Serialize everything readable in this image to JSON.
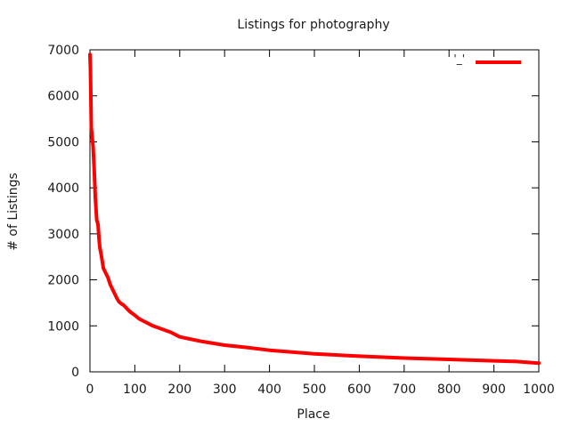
{
  "chart_data": {
    "type": "line",
    "title": "Listings for photography",
    "xlabel": "Place",
    "ylabel": "# of Listings",
    "xlim": [
      0,
      1000
    ],
    "ylim": [
      0,
      7000
    ],
    "xticks": [
      0,
      100,
      200,
      300,
      400,
      500,
      600,
      700,
      800,
      900,
      1000
    ],
    "yticks": [
      0,
      1000,
      2000,
      3000,
      4000,
      5000,
      6000,
      7000
    ],
    "grid": false,
    "legend": {
      "position": "top-right",
      "label": "'_'"
    },
    "series": [
      {
        "color": "#ff0000",
        "x": [
          0,
          1,
          2,
          3,
          5,
          7,
          10,
          12,
          15,
          18,
          20,
          22,
          25,
          30,
          35,
          40,
          45,
          50,
          55,
          60,
          65,
          70,
          75,
          80,
          85,
          90,
          100,
          110,
          120,
          140,
          160,
          180,
          200,
          250,
          300,
          350,
          400,
          450,
          500,
          600,
          700,
          800,
          900,
          950,
          1000
        ],
        "y": [
          6900,
          6600,
          6000,
          5300,
          5100,
          4900,
          4300,
          3800,
          3300,
          3200,
          2900,
          2700,
          2550,
          2250,
          2150,
          2050,
          1900,
          1800,
          1700,
          1600,
          1520,
          1480,
          1450,
          1400,
          1350,
          1300,
          1230,
          1150,
          1100,
          1000,
          930,
          860,
          760,
          660,
          580,
          530,
          470,
          430,
          390,
          340,
          300,
          270,
          240,
          225,
          190
        ]
      }
    ]
  }
}
